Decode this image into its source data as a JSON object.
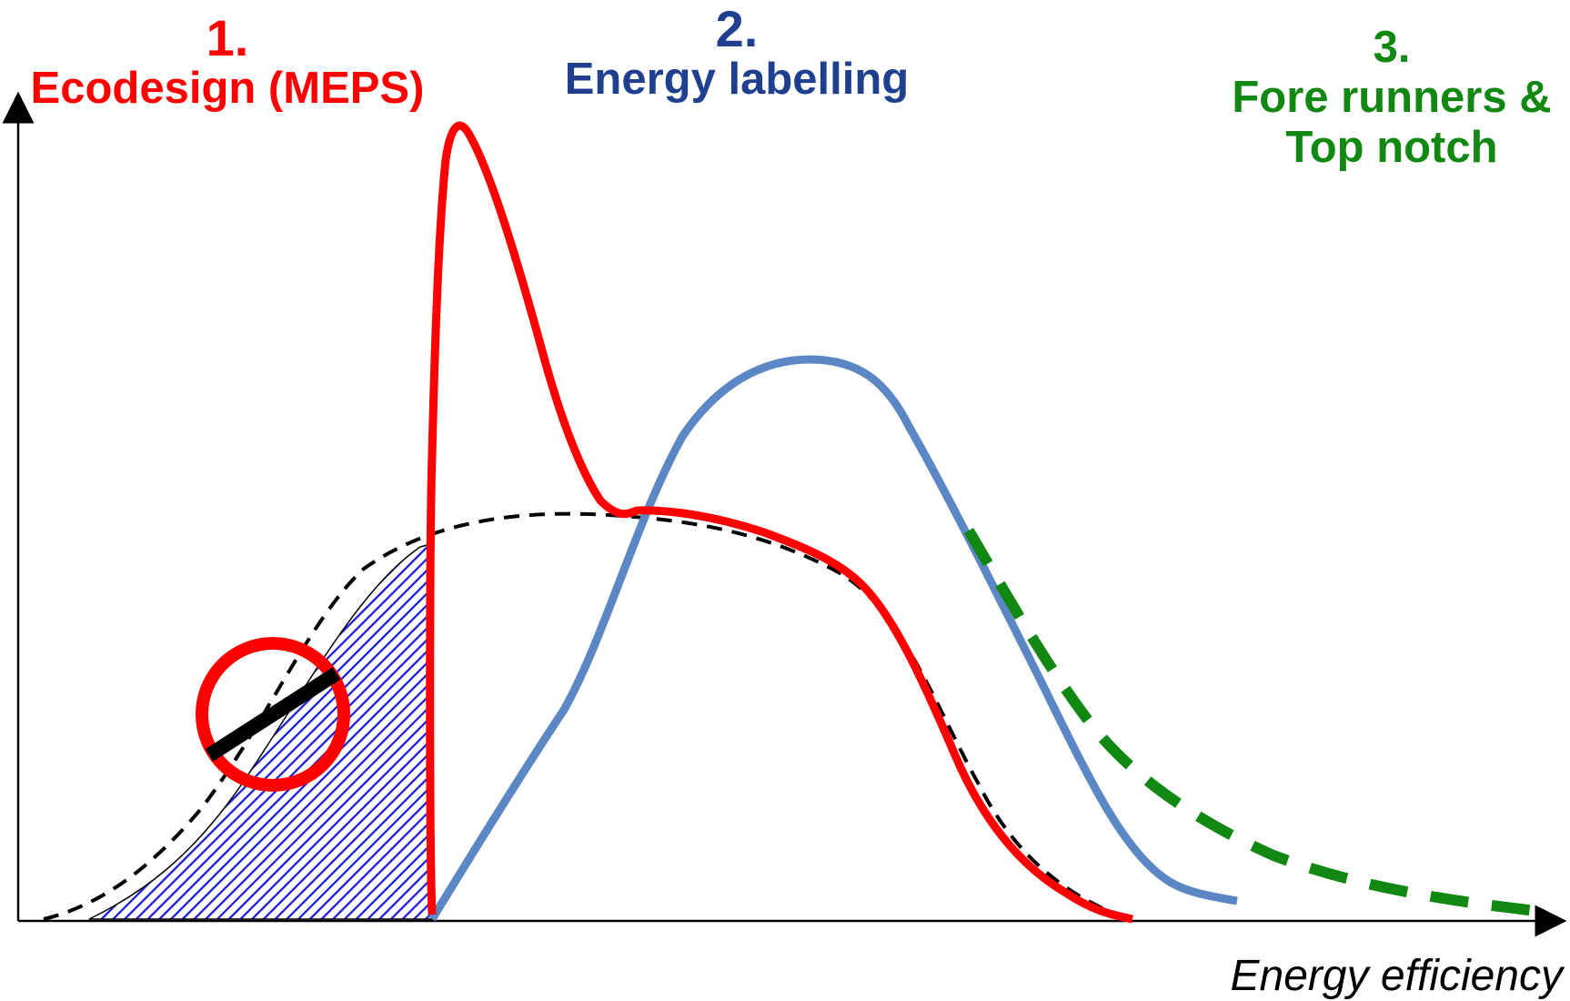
{
  "labels": {
    "ecodesign": {
      "number": "1.",
      "text": "Ecodesign (MEPS)"
    },
    "energy_labelling": {
      "number": "2.",
      "text": "Energy labelling"
    },
    "forerunners": {
      "number": "3.",
      "line1": "Fore runners &",
      "line2": "Top notch"
    }
  },
  "x_axis_label": "Energy efficiency",
  "colors": {
    "ecodesign": "#ff0000",
    "energy_labelling": "#1f3f8f",
    "forerunners": "#118811",
    "labelling_curve": "#5b87c5",
    "hatch": "#1a1ad6",
    "axis": "#000000"
  },
  "icons": [
    "prohibition-icon"
  ]
}
